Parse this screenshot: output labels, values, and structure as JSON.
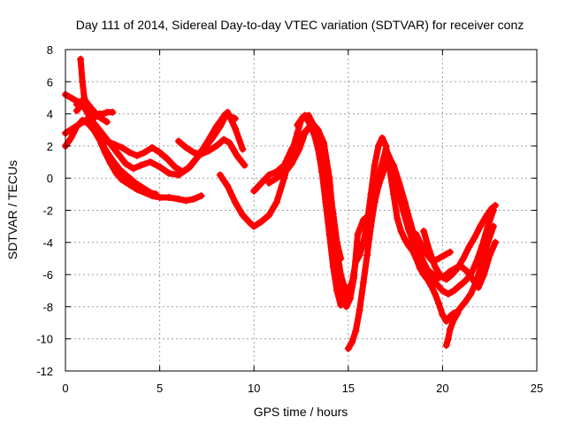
{
  "chart_data": {
    "type": "line",
    "title": "Day 111 of 2014, Sidereal Day-to-day VTEC variation (SDTVAR) for receiver conz",
    "xlabel": "GPS time / hours",
    "ylabel": "SDTVAR / TECUs",
    "xlim": [
      0,
      25
    ],
    "ylim": [
      -12,
      8
    ],
    "xticks": [
      0,
      5,
      10,
      15,
      20,
      25
    ],
    "yticks": [
      -12,
      -10,
      -8,
      -6,
      -4,
      -2,
      0,
      2,
      4,
      6,
      8
    ],
    "grid": true,
    "legend": "none",
    "color": "#ff0000",
    "series": [
      {
        "x": [
          0.0,
          0.3,
          0.6,
          0.9,
          1.2,
          1.5,
          1.8,
          2.1,
          2.4,
          2.7,
          3.0,
          3.4,
          3.8,
          4.2,
          4.6,
          5.0,
          5.5,
          6.0,
          6.4,
          6.8,
          7.2
        ],
        "y": [
          2.0,
          2.5,
          3.2,
          3.6,
          3.4,
          3.0,
          2.4,
          1.6,
          0.9,
          0.3,
          -0.1,
          -0.4,
          -0.7,
          -0.9,
          -1.1,
          -1.2,
          -1.2,
          -1.3,
          -1.4,
          -1.3,
          -1.1
        ]
      },
      {
        "x": [
          0.0,
          0.4,
          0.8,
          1.2,
          1.6,
          2.0,
          2.4,
          2.8,
          3.2,
          3.6,
          4.0,
          4.5,
          5.0,
          5.5,
          6.0,
          6.5,
          7.0,
          7.5,
          8.0,
          8.5,
          9.0
        ],
        "y": [
          2.8,
          3.1,
          3.4,
          3.7,
          3.3,
          2.7,
          2.1,
          1.5,
          0.9,
          0.6,
          0.8,
          1.0,
          0.7,
          0.3,
          0.2,
          0.6,
          1.3,
          2.2,
          3.2,
          4.0,
          3.7
        ]
      },
      {
        "x": [
          0.0,
          0.3,
          0.6,
          0.9,
          1.2,
          1.5,
          1.8,
          2.1,
          2.5,
          2.9,
          3.3,
          3.7,
          4.1,
          4.5,
          4.8
        ],
        "y": [
          5.2,
          5.0,
          4.8,
          4.7,
          4.2,
          3.4,
          2.6,
          1.8,
          1.1,
          0.5,
          0.1,
          -0.3,
          -0.6,
          -0.9,
          -1.0
        ]
      },
      {
        "x": [
          0.6,
          0.9,
          1.2,
          1.5,
          1.8,
          2.2,
          2.6,
          3.0,
          3.4,
          3.8,
          4.2,
          4.6,
          5.0,
          5.4,
          5.8,
          6.2,
          6.6,
          7.0,
          7.4,
          7.8,
          8.2,
          8.6,
          9.0,
          9.4
        ],
        "y": [
          4.2,
          4.6,
          4.0,
          3.3,
          2.7,
          2.3,
          2.1,
          1.9,
          1.6,
          1.4,
          1.6,
          1.9,
          1.6,
          1.2,
          0.7,
          0.4,
          0.7,
          1.3,
          1.9,
          2.5,
          3.2,
          4.1,
          3.1,
          1.8
        ]
      },
      {
        "x": [
          0.8,
          0.9,
          1.0,
          1.1,
          1.2,
          1.4,
          1.6,
          1.8,
          2.0,
          2.2,
          2.5
        ],
        "y": [
          7.4,
          6.0,
          5.0,
          4.4,
          4.0,
          3.7,
          3.8,
          4.0,
          4.0,
          4.1,
          4.1
        ]
      },
      {
        "x": [
          0.6,
          1.0,
          1.4,
          1.8,
          2.2
        ],
        "y": [
          4.6,
          4.9,
          4.3,
          3.8,
          3.5
        ]
      },
      {
        "x": [
          6.0,
          6.4,
          6.8,
          7.2,
          7.6,
          8.0,
          8.4,
          8.7,
          9.1,
          9.5
        ],
        "y": [
          2.3,
          1.9,
          1.6,
          1.5,
          1.7,
          2.0,
          2.4,
          2.2,
          1.4,
          0.8
        ]
      },
      {
        "x": [
          8.2,
          8.6,
          9.0,
          9.4,
          9.8,
          10.0,
          10.4,
          10.8,
          11.2,
          11.6,
          11.9,
          12.1,
          12.3,
          12.5,
          12.7,
          12.9,
          13.2,
          13.4,
          13.6,
          13.8,
          14.0,
          14.2,
          14.4,
          14.6,
          14.8,
          15.0
        ],
        "y": [
          0.2,
          -0.5,
          -1.5,
          -2.3,
          -2.8,
          -3.0,
          -2.7,
          -2.3,
          -1.5,
          0.0,
          1.3,
          2.0,
          2.8,
          3.6,
          3.9,
          3.5,
          2.7,
          1.8,
          0.4,
          -1.5,
          -3.5,
          -5.5,
          -7.0,
          -7.9,
          -7.4,
          -6.8
        ]
      },
      {
        "x": [
          10.0,
          10.4,
          10.8,
          11.2,
          11.6,
          12.0,
          12.4,
          12.8,
          13.1,
          13.4,
          13.7,
          14.0,
          14.2,
          14.4,
          14.6,
          14.8,
          15.0,
          15.2,
          15.4,
          15.6,
          15.8,
          16.0,
          16.2,
          16.4,
          16.6,
          16.8,
          17.0,
          17.2,
          17.4,
          17.6,
          17.8,
          18.0,
          18.2,
          18.4,
          18.6,
          18.8,
          19.0,
          19.2,
          19.4,
          19.6,
          19.8,
          20.0,
          20.2,
          20.4,
          20.6,
          20.8,
          21.0,
          21.2,
          21.5,
          21.8,
          22.1,
          22.4,
          22.7
        ],
        "y": [
          -0.8,
          -0.3,
          0.2,
          0.4,
          0.8,
          1.8,
          2.5,
          3.0,
          3.4,
          3.0,
          2.2,
          0.0,
          -2.5,
          -4.5,
          -6.0,
          -6.8,
          -7.0,
          -6.5,
          -5.2,
          -4.8,
          -4.0,
          -2.8,
          -1.0,
          0.8,
          2.0,
          2.5,
          2.0,
          0.5,
          -1.0,
          -2.5,
          -3.3,
          -3.8,
          -4.2,
          -4.5,
          -5.0,
          -5.6,
          -6.0,
          -6.3,
          -6.7,
          -7.2,
          -7.8,
          -8.5,
          -8.9,
          -8.6,
          -8.4,
          -8.3,
          -8.0,
          -7.7,
          -7.2,
          -6.4,
          -5.2,
          -4.0,
          -3.0
        ]
      },
      {
        "x": [
          10.8,
          11.2,
          11.6,
          12.0,
          12.4,
          12.7,
          13.0,
          13.3,
          13.6,
          13.9,
          14.1,
          14.3,
          14.5,
          14.7,
          14.9,
          15.1,
          15.3,
          15.5,
          15.8,
          16.1,
          16.4,
          16.7,
          17.0,
          17.3,
          17.6,
          17.9,
          18.2,
          18.5,
          18.8,
          19.1,
          19.4,
          19.7,
          20.0,
          20.3,
          20.6,
          20.9,
          21.2,
          21.5,
          21.8,
          22.1,
          22.4,
          22.7
        ],
        "y": [
          -0.3,
          0.0,
          0.3,
          0.9,
          1.8,
          2.8,
          3.3,
          3.0,
          2.0,
          0.5,
          -1.5,
          -3.5,
          -5.5,
          -7.0,
          -8.0,
          -7.5,
          -6.2,
          -3.5,
          -2.6,
          -2.3,
          -1.5,
          0.5,
          1.8,
          1.0,
          -0.5,
          -2.0,
          -3.2,
          -4.2,
          -5.0,
          -5.7,
          -6.2,
          -6.6,
          -7.0,
          -7.2,
          -7.0,
          -6.7,
          -6.4,
          -6.0,
          -5.2,
          -4.2,
          -3.0,
          -2.0
        ]
      },
      {
        "x": [
          12.3,
          12.6,
          12.9,
          13.2,
          13.5,
          13.8,
          14.0,
          14.2,
          14.4,
          14.6
        ],
        "y": [
          3.3,
          3.8,
          3.9,
          3.2,
          2.4,
          1.0,
          -0.5,
          -2.2,
          -4.0,
          -5.0
        ]
      },
      {
        "x": [
          15.0,
          15.2,
          15.4,
          15.6,
          15.8,
          16.0,
          16.2,
          16.4,
          16.6,
          16.8,
          17.0
        ],
        "y": [
          -10.6,
          -10.2,
          -9.5,
          -8.2,
          -6.5,
          -4.8,
          -3.0,
          -1.5,
          -0.5,
          0.5,
          1.8
        ]
      },
      {
        "x": [
          16.5,
          16.8,
          17.1,
          17.4,
          17.7,
          18.0,
          18.3,
          18.6,
          18.9,
          19.2,
          19.5,
          19.8,
          20.1,
          20.4,
          20.7,
          21.0,
          21.3,
          21.6,
          21.9,
          22.2,
          22.5,
          22.8
        ],
        "y": [
          -0.8,
          0.2,
          1.2,
          0.8,
          -0.3,
          -1.5,
          -2.8,
          -4.0,
          -5.0,
          -5.7,
          -6.0,
          -6.2,
          -6.1,
          -5.8,
          -5.6,
          -5.5,
          -5.8,
          -6.3,
          -6.8,
          -6.0,
          -4.8,
          -4.0
        ]
      },
      {
        "x": [
          19.0,
          19.3,
          19.6,
          19.9,
          20.2,
          20.5,
          20.8,
          21.1,
          21.4,
          21.7,
          22.0,
          22.3,
          22.6,
          22.8
        ],
        "y": [
          -3.3,
          -4.5,
          -5.5,
          -6.1,
          -6.3,
          -6.0,
          -5.6,
          -5.0,
          -4.3,
          -3.7,
          -3.0,
          -2.4,
          -1.9,
          -1.7
        ]
      },
      {
        "x": [
          20.2,
          20.3,
          20.4,
          20.6,
          20.8
        ],
        "y": [
          -10.4,
          -10.0,
          -9.4,
          -8.8,
          -8.4
        ]
      },
      {
        "x": [
          18.6,
          18.9,
          19.2,
          19.5,
          19.8,
          20.1,
          20.4
        ],
        "y": [
          -3.5,
          -4.2,
          -4.8,
          -5.2,
          -5.0,
          -4.8,
          -4.6
        ]
      }
    ]
  }
}
